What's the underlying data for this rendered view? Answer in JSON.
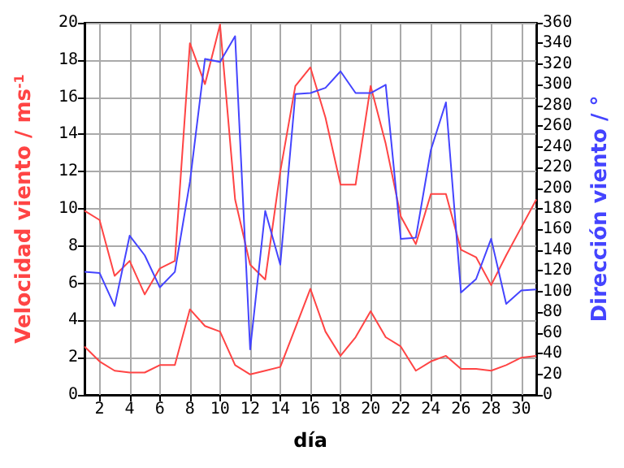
{
  "chart_data": {
    "type": "line",
    "xlabel": "día",
    "ylabel": "Velocidad viento / ms$^{-1}$",
    "y2label": "Dirección viento / °",
    "x": [
      1,
      2,
      3,
      4,
      5,
      6,
      7,
      8,
      9,
      10,
      11,
      12,
      13,
      14,
      15,
      16,
      17,
      18,
      19,
      20,
      21,
      22,
      23,
      24,
      25,
      26,
      27,
      28,
      29,
      30,
      31
    ],
    "series": [
      {
        "color": "#ff4444",
        "values": [
          9.9,
          9.4,
          6.4,
          7.2,
          5.4,
          6.8,
          7.2,
          18.9,
          16.7,
          19.9,
          10.5,
          7.0,
          6.2,
          12.0,
          16.6,
          17.6,
          14.9,
          11.3,
          11.3,
          16.6,
          13.5,
          9.6,
          8.1,
          10.8,
          10.8,
          7.8,
          7.4,
          5.9,
          7.5,
          9.0,
          10.5
        ]
      },
      {
        "color": "#ff4444",
        "values": [
          2.6,
          1.8,
          1.3,
          1.2,
          1.2,
          1.6,
          1.6,
          4.6,
          3.7,
          3.4,
          1.6,
          1.1,
          1.3,
          1.5,
          3.6,
          5.7,
          3.4,
          2.1,
          3.1,
          4.5,
          3.1,
          2.6,
          1.3,
          1.8,
          2.1,
          1.4,
          1.4,
          1.3,
          1.6,
          2.0,
          2.1
        ]
      },
      {
        "color": "#4444ff",
        "axis": "y2",
        "values": [
          119,
          118,
          86,
          154,
          135,
          104,
          119,
          206,
          325,
          322,
          347,
          44,
          178,
          126,
          291,
          292,
          297,
          313,
          292,
          292,
          300,
          151,
          152,
          237,
          283,
          99,
          112,
          151,
          88,
          101,
          102
        ]
      }
    ],
    "xlim": [
      1,
      31
    ],
    "xticks": [
      2,
      4,
      6,
      8,
      10,
      12,
      14,
      16,
      18,
      20,
      22,
      24,
      26,
      28,
      30
    ],
    "ylim": [
      0,
      20
    ],
    "yticks": [
      0,
      2,
      4,
      6,
      8,
      10,
      12,
      14,
      16,
      18,
      20
    ],
    "y2lim": [
      0,
      360
    ],
    "y2ticks": [
      0,
      20,
      40,
      60,
      80,
      100,
      120,
      140,
      160,
      180,
      200,
      220,
      240,
      260,
      280,
      300,
      320,
      340,
      360
    ],
    "grid": true,
    "marker": "none",
    "line_style": "solid"
  }
}
